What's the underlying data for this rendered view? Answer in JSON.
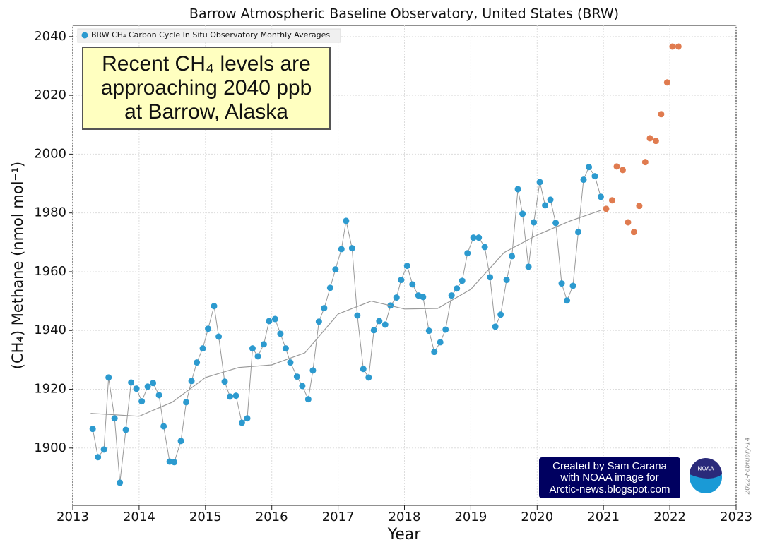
{
  "chart_data": {
    "type": "scatter",
    "title": "Barrow Atmospheric Baseline Observatory, United States (BRW)",
    "x_label": "Year",
    "y_label": "(CH₄) Methane (nmol mol⁻¹)",
    "xlim": [
      2013,
      2023
    ],
    "xticks": [
      2013,
      2014,
      2015,
      2016,
      2017,
      2018,
      2019,
      2020,
      2021,
      2022,
      2023
    ],
    "ylim": [
      1880.5,
      2043.8
    ],
    "yticks": [
      1900,
      1920,
      1940,
      1960,
      1980,
      2000,
      2020,
      2040
    ],
    "grid": true,
    "legend": "upper left",
    "series": [
      {
        "name": "BRW CH₄ Carbon Cycle In Situ Observatory Monthly Averages",
        "color": "#2c9acf",
        "connect": true,
        "x": [
          2013.3,
          2013.38,
          2013.47,
          2013.54,
          2013.63,
          2013.71,
          2013.8,
          2013.88,
          2013.96,
          2014.04,
          2014.13,
          2014.21,
          2014.3,
          2014.37,
          2014.46,
          2014.53,
          2014.63,
          2014.71,
          2014.79,
          2014.87,
          2014.96,
          2015.04,
          2015.13,
          2015.2,
          2015.29,
          2015.37,
          2015.46,
          2015.55,
          2015.63,
          2015.71,
          2015.79,
          2015.88,
          2015.96,
          2016.05,
          2016.13,
          2016.21,
          2016.28,
          2016.38,
          2016.46,
          2016.55,
          2016.62,
          2016.71,
          2016.79,
          2016.88,
          2016.96,
          2017.05,
          2017.12,
          2017.21,
          2017.29,
          2017.38,
          2017.46,
          2017.54,
          2017.62,
          2017.71,
          2017.79,
          2017.88,
          2017.95,
          2018.04,
          2018.12,
          2018.21,
          2018.28,
          2018.37,
          2018.45,
          2018.54,
          2018.62,
          2018.71,
          2018.79,
          2018.87,
          2018.95,
          2019.04,
          2019.12,
          2019.21,
          2019.29,
          2019.37,
          2019.45,
          2019.54,
          2019.62,
          2019.71,
          2019.78,
          2019.87,
          2019.95,
          2020.04,
          2020.12,
          2020.2,
          2020.28,
          2020.37,
          2020.45,
          2020.54,
          2020.62,
          2020.7,
          2020.78,
          2020.87,
          2020.96
        ],
        "values": [
          1906.5,
          1896.9,
          1899.5,
          1924.0,
          1910.1,
          1888.2,
          1906.2,
          1922.3,
          1920.2,
          1915.9,
          1920.9,
          1922.1,
          1918.0,
          1907.4,
          1895.4,
          1895.2,
          1902.4,
          1915.6,
          1922.8,
          1929.1,
          1933.9,
          1940.6,
          1948.3,
          1937.9,
          1922.6,
          1917.5,
          1917.8,
          1908.6,
          1910.1,
          1933.9,
          1931.2,
          1935.3,
          1943.2,
          1943.9,
          1938.9,
          1933.9,
          1929.1,
          1924.3,
          1921.1,
          1916.6,
          1926.4,
          1943.0,
          1947.6,
          1954.5,
          1960.8,
          1967.7,
          1977.3,
          1968.0,
          1945.1,
          1926.9,
          1924.0,
          1940.1,
          1943.2,
          1942.0,
          1948.5,
          1951.2,
          1957.2,
          1962.0,
          1955.7,
          1951.9,
          1951.4,
          1939.9,
          1932.7,
          1936.0,
          1940.3,
          1951.9,
          1954.3,
          1956.9,
          1966.3,
          1971.6,
          1971.6,
          1968.4,
          1958.1,
          1941.3,
          1945.4,
          1957.2,
          1965.3,
          1988.1,
          1979.7,
          1961.7,
          1976.8,
          1990.5,
          1982.6,
          1984.5,
          1976.6,
          1956.0,
          1950.2,
          1955.2,
          1973.5,
          1991.3,
          1995.6,
          1992.5,
          1985.5
        ]
      },
      {
        "color": "#e07b4f",
        "x": [
          2021.04,
          2021.13,
          2021.2,
          2021.29,
          2021.37,
          2021.46,
          2021.54,
          2021.63,
          2021.7,
          2021.79,
          2021.87,
          2021.96,
          2022.04,
          2022.13
        ],
        "values": [
          1981.4,
          1984.3,
          1995.8,
          1994.6,
          1976.8,
          1973.5,
          1982.4,
          1997.3,
          2005.4,
          2004.5,
          2013.6,
          2024.4,
          2036.6,
          2036.6
        ]
      },
      {
        "color": "#999999",
        "type": "line",
        "x": [
          2013.27,
          2014.0,
          2014.5,
          2015.0,
          2015.5,
          2016.0,
          2016.5,
          2017.0,
          2017.5,
          2018.0,
          2018.5,
          2019.0,
          2019.5,
          2020.0,
          2020.5,
          2020.96
        ],
        "values": [
          1911.8,
          1910.8,
          1915.6,
          1924.0,
          1927.4,
          1928.3,
          1932.4,
          1945.6,
          1950.0,
          1947.3,
          1947.5,
          1954.0,
          1966.5,
          1972.5,
          1977.3,
          1980.9
        ]
      }
    ],
    "annotation": [
      "Recent CH₄ levels are",
      "approaching 2040 ppb",
      "at Barrow, Alaska"
    ],
    "credit": [
      "Created by Sam Carana",
      "with NOAA image for",
      "Arctic-news.blogspot.com"
    ],
    "logo": "NOAA",
    "date": "2022-February-14"
  }
}
